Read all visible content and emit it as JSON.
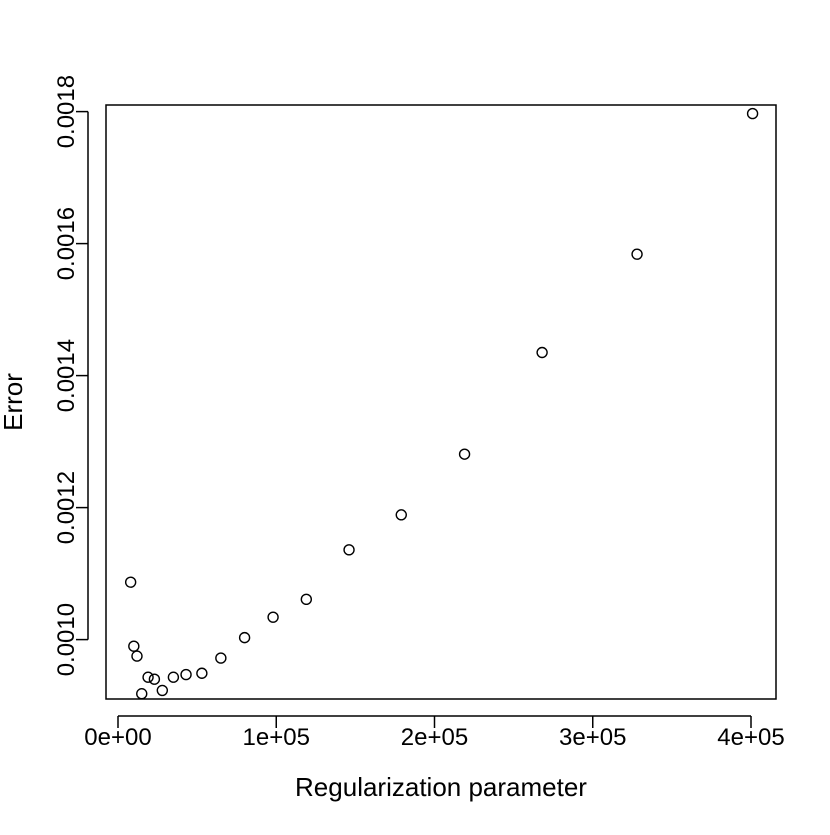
{
  "chart_data": {
    "type": "scatter",
    "title": "",
    "xlabel": "Regularization parameter",
    "ylabel": "Error",
    "xlim": [
      0,
      400000
    ],
    "ylim": [
      0.00091,
      0.00181
    ],
    "x_ticks": [
      0,
      100000,
      200000,
      300000,
      400000
    ],
    "x_tick_labels": [
      "0e+00",
      "1e+05",
      "2e+05",
      "3e+05",
      "4e+05"
    ],
    "y_ticks": [
      0.001,
      0.0012,
      0.0014,
      0.0016,
      0.0018
    ],
    "y_tick_labels": [
      "0.0010",
      "0.0012",
      "0.0014",
      "0.0016",
      "0.0018"
    ],
    "grid": false,
    "marker": "open-circle",
    "series": [
      {
        "points": [
          {
            "x": 8000,
            "y": 0.001087
          },
          {
            "x": 10000,
            "y": 0.00099
          },
          {
            "x": 12000,
            "y": 0.000975
          },
          {
            "x": 15000,
            "y": 0.000918
          },
          {
            "x": 19000,
            "y": 0.000943
          },
          {
            "x": 23000,
            "y": 0.00094
          },
          {
            "x": 28000,
            "y": 0.000923
          },
          {
            "x": 35000,
            "y": 0.000943
          },
          {
            "x": 43000,
            "y": 0.000947
          },
          {
            "x": 53000,
            "y": 0.000949
          },
          {
            "x": 65000,
            "y": 0.000972
          },
          {
            "x": 80000,
            "y": 0.001003
          },
          {
            "x": 98000,
            "y": 0.001034
          },
          {
            "x": 119000,
            "y": 0.001061
          },
          {
            "x": 146000,
            "y": 0.001136
          },
          {
            "x": 179000,
            "y": 0.001189
          },
          {
            "x": 219000,
            "y": 0.001281
          },
          {
            "x": 268000,
            "y": 0.001435
          },
          {
            "x": 328000,
            "y": 0.001584
          },
          {
            "x": 401000,
            "y": 0.001797
          }
        ]
      }
    ]
  }
}
